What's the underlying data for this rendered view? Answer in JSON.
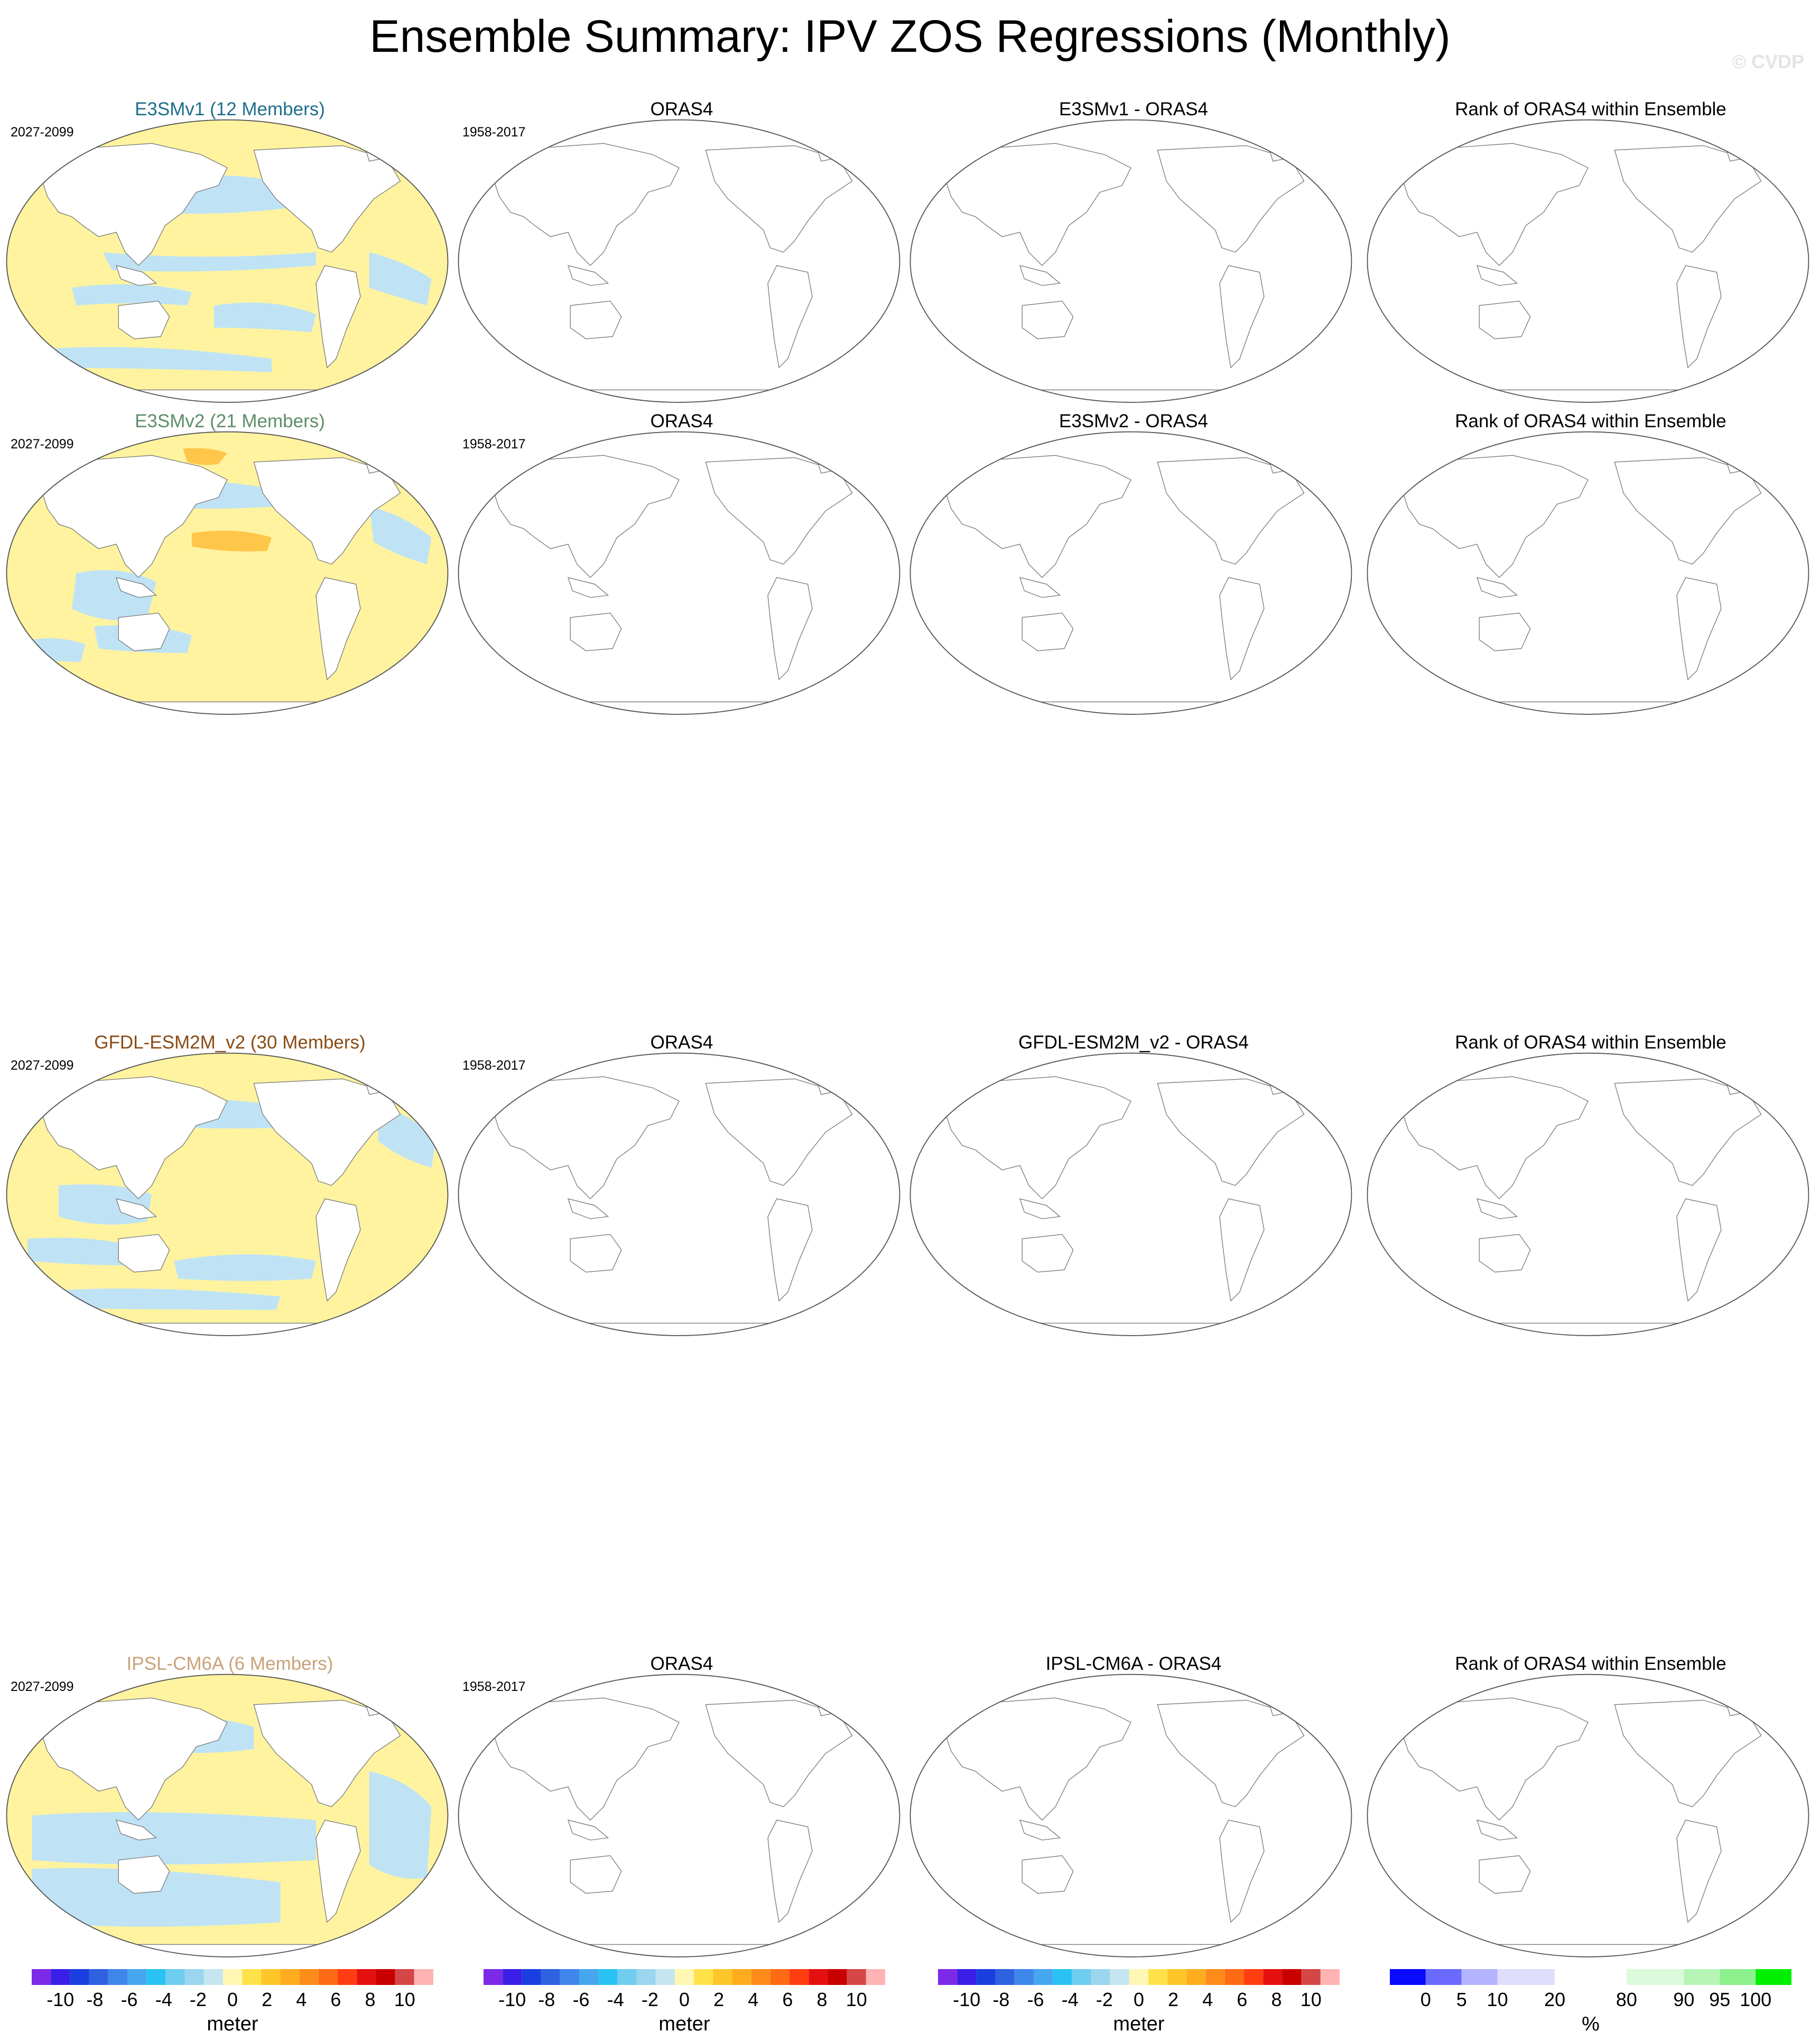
{
  "title": "Ensemble Summary: IPV ZOS Regressions (Monthly)",
  "copyright": "© CVDP",
  "rows": [
    {
      "ensemble_title": "E3SMv1 (12 Members)",
      "ensemble_title_color": "#1f6e8c",
      "ensemble_period": "2027-2099",
      "obs_title": "ORAS4",
      "obs_period": "1958-2017",
      "diff_title": "E3SMv1 - ORAS4",
      "rank_title": "Rank of ORAS4 within Ensemble"
    },
    {
      "ensemble_title": "E3SMv2 (21 Members)",
      "ensemble_title_color": "#5e8d6a",
      "ensemble_period": "2027-2099",
      "obs_title": "ORAS4",
      "obs_period": "1958-2017",
      "diff_title": "E3SMv2 - ORAS4",
      "rank_title": "Rank of ORAS4 within Ensemble"
    },
    {
      "ensemble_title": "GFDL-ESM2M_v2 (30 Members)",
      "ensemble_title_color": "#8a4b14",
      "ensemble_period": "2027-2099",
      "obs_title": "ORAS4",
      "obs_period": "1958-2017",
      "diff_title": "GFDL-ESM2M_v2 - ORAS4",
      "rank_title": "Rank of ORAS4 within Ensemble"
    },
    {
      "ensemble_title": "IPSL-CM6A (6 Members)",
      "ensemble_title_color": "#c8a27a",
      "ensemble_period": "2027-2099",
      "obs_title": "ORAS4",
      "obs_period": "1958-2017",
      "diff_title": "IPSL-CM6A - ORAS4",
      "rank_title": "Rank of ORAS4 within Ensemble"
    }
  ],
  "colors": {
    "positive_fill": "#fff3a0",
    "negative_fill": "#bfe3f5",
    "strong_positive": "#ffc64a",
    "strong_negative": "#4aa6e8",
    "land": "#ffffff",
    "coast": "#7a7a7a"
  },
  "chart_data": {
    "type": "heatmap",
    "description_of_fields": "sea surface height regression maps; only the ensemble column carries filled values",
    "meter_colorbar": {
      "unit": "meter",
      "tick_labels": [
        "-10",
        "-8",
        "-6",
        "-4",
        "-2",
        "0",
        "2",
        "4",
        "6",
        "8",
        "10"
      ],
      "colors": [
        "#7d2ae8",
        "#3b1fe6",
        "#1a3fe0",
        "#2f62e0",
        "#3f86ea",
        "#46a6ee",
        "#29c2f2",
        "#6fcdef",
        "#9bd6ee",
        "#c5e6f1",
        "#fff7b3",
        "#ffe24a",
        "#ffc629",
        "#ffad1f",
        "#ff8c1a",
        "#ff6a15",
        "#ff3d10",
        "#e41010",
        "#c80000",
        "#d54747",
        "#ffb3b3"
      ]
    },
    "rank_colorbar": {
      "unit": "%",
      "tick_labels": [
        "0",
        "5",
        "10",
        "20",
        "80",
        "90",
        "95",
        "100"
      ],
      "colors": [
        "#0a0aff",
        "#6a6aff",
        "#b3b3ff",
        "#dedefc",
        "#ffffff",
        "#dcfadc",
        "#b6f5b6",
        "#8cf18c",
        "#00f000"
      ]
    }
  }
}
